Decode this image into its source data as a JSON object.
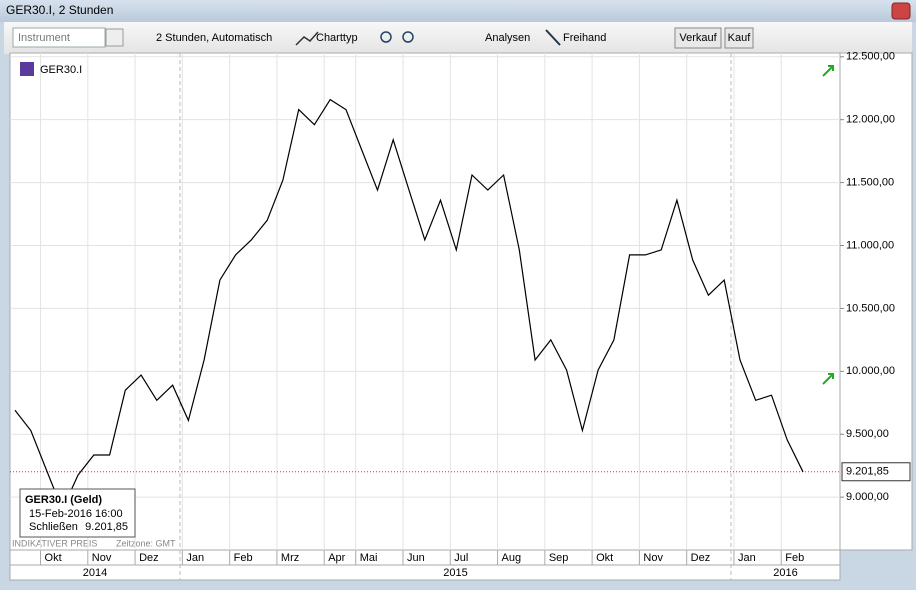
{
  "window": {
    "title": "GER30.I, 2 Stunden"
  },
  "toolbar": {
    "instrument_placeholder": "Instrument",
    "interval": "2 Stunden, Automatisch",
    "chart_type": "Charttyp",
    "analyses": "Analysen",
    "freehand": "Freihand",
    "sell": "Verkauf",
    "buy": "Kauf"
  },
  "chart_data": {
    "type": "line",
    "categories": [
      null,
      null,
      "Okt",
      null,
      null,
      "Nov",
      null,
      null,
      "Dez",
      null,
      null,
      "Jan",
      null,
      null,
      "Feb",
      null,
      null,
      "Mrz",
      null,
      null,
      "Apr",
      null,
      "Mai",
      null,
      null,
      "Jun",
      null,
      null,
      "Jul",
      null,
      null,
      "Aug",
      null,
      null,
      "Sep",
      null,
      null,
      "Okt",
      null,
      null,
      "Nov",
      null,
      null,
      "Dez",
      null,
      null,
      "Jan",
      null,
      null,
      "Feb",
      null
    ],
    "series": [
      {
        "name": "GER30.I",
        "color": "#000000",
        "values": [
          9690,
          9530,
          9215,
          8900,
          9175,
          9335,
          9335,
          9850,
          9970,
          9770,
          9890,
          9610,
          10090,
          10725,
          10925,
          11045,
          11200,
          11520,
          12080,
          11960,
          12160,
          12080,
          11760,
          11440,
          11840,
          11440,
          11045,
          11360,
          10965,
          11560,
          11440,
          11560,
          10965,
          10090,
          10250,
          10010,
          9530,
          10010,
          10250,
          10925,
          10925,
          10965,
          11360,
          10885,
          10605,
          10725,
          10090,
          9770,
          9810,
          9455,
          9201.85
        ]
      }
    ],
    "ylim": [
      8580,
      12530
    ],
    "yticks": [
      {
        "value": 9000,
        "label": "9.000,00"
      },
      {
        "value": 9500,
        "label": "9.500,00"
      },
      {
        "value": 10000,
        "label": "10.000,00"
      },
      {
        "value": 10500,
        "label": "10.500,00"
      },
      {
        "value": 11000,
        "label": "11.000,00"
      },
      {
        "value": 11500,
        "label": "11.500,00"
      },
      {
        "value": 12000,
        "label": "12.000,00"
      },
      {
        "value": 12500,
        "label": "12.500,00"
      }
    ],
    "grid": true,
    "years": [
      "2014",
      "2015",
      "2016"
    ],
    "current_price": {
      "value": 9201.85,
      "label": "9.201,85"
    },
    "tooltip": {
      "title": "GER30.I (Geld)",
      "date": "15-Feb-2016 16:00",
      "field": "Schließen",
      "value": "9.201,85"
    }
  },
  "footer": {
    "price_note": "INDIKATIVER PREIS",
    "timezone": "Zeitzone: GMT"
  }
}
